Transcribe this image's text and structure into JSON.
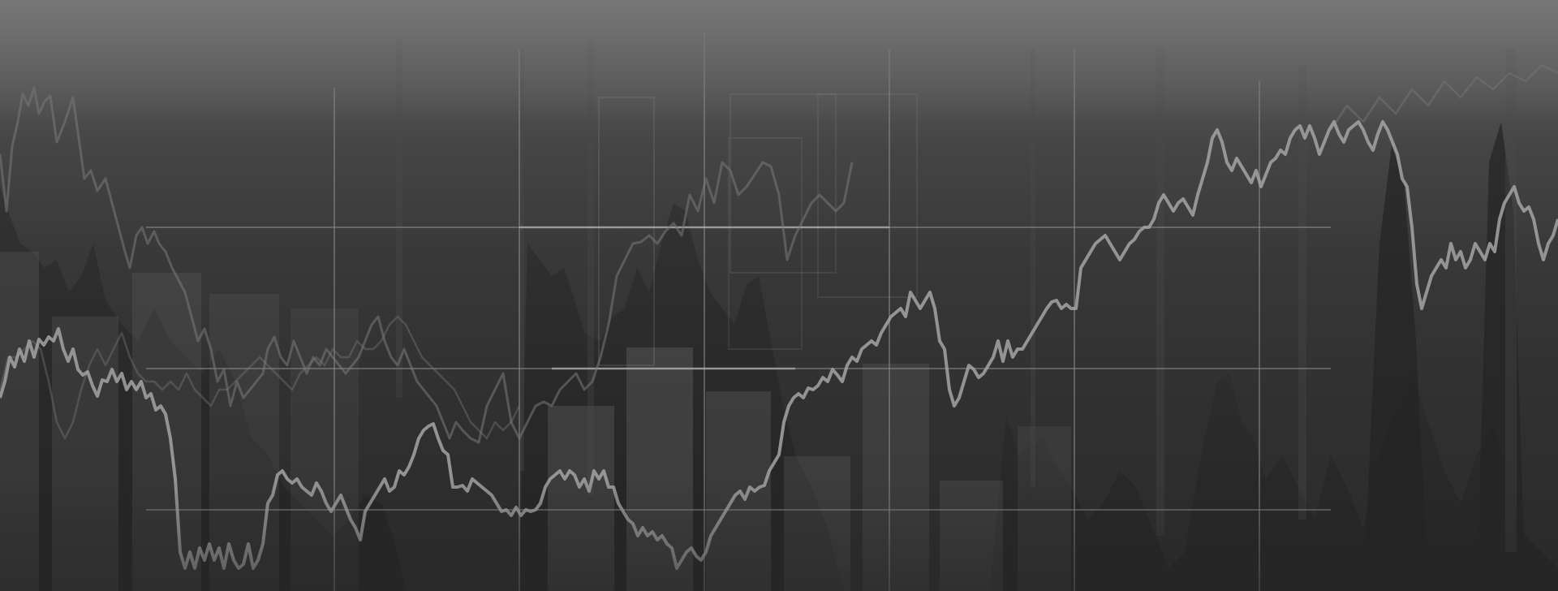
{
  "image": {
    "subject": "abstract-financial-chart-background",
    "colors": {
      "background_top": "#6f6f6f",
      "background_bottom": "#2b2b2b",
      "main_line": "#9a9a9a",
      "faint_line": "#6a6a6a",
      "grid": "#8a8a8a"
    }
  }
}
